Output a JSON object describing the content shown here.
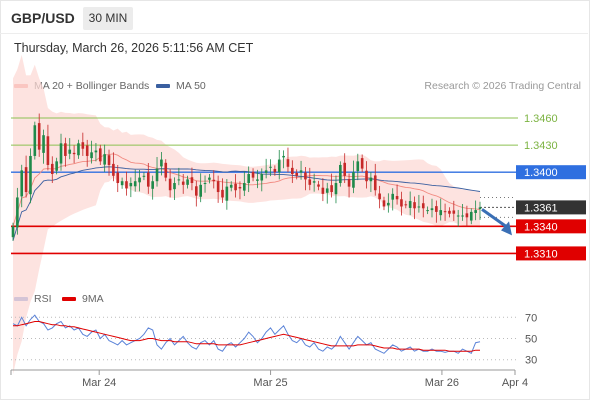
{
  "header": {
    "symbol": "GBP/USD",
    "timeframe": "30 MIN",
    "datetime": "Thursday, March 26, 2026 5:11:56 AM CET",
    "research": "Research © 2026 Trading Central"
  },
  "colors": {
    "bollinger": "#fcd9d6",
    "ma20": "#f28b82",
    "ma50": "#3a5fa0",
    "up": "#1f8a4a",
    "down": "#c62828",
    "green_level": "#8cc152",
    "pivot": "#2f6fe0",
    "support": "#e00000",
    "current_tag": "#333333",
    "rsi": "#5b83d8",
    "rsi_ma": "#e00000"
  },
  "chart_data": [
    {
      "type": "candlestick",
      "legend": [
        "MA 20 + Bollinger Bands",
        "MA 50"
      ],
      "ylim": [
        1.3275,
        1.348
      ],
      "levels": [
        {
          "value": 1.346,
          "label": "1.3460",
          "kind": "resistance-minor"
        },
        {
          "value": 1.343,
          "label": "1.3430",
          "kind": "resistance-minor"
        },
        {
          "value": 1.34,
          "label": "1.3400",
          "kind": "pivot"
        },
        {
          "value": 1.3361,
          "label": "1.3361",
          "kind": "current"
        },
        {
          "value": 1.334,
          "label": "1.3340",
          "kind": "support"
        },
        {
          "value": 1.331,
          "label": "1.3310",
          "kind": "support"
        }
      ],
      "close_series": [
        1.334,
        1.3372,
        1.3402,
        1.3378,
        1.3418,
        1.3452,
        1.3425,
        1.3441,
        1.3408,
        1.3398,
        1.3412,
        1.3432,
        1.3418,
        1.3425,
        1.342,
        1.3432,
        1.3426,
        1.3418,
        1.3422,
        1.3424,
        1.3412,
        1.342,
        1.3408,
        1.3396,
        1.3388,
        1.339,
        1.3382,
        1.3388,
        1.339,
        1.3394,
        1.3396,
        1.3384,
        1.339,
        1.3404,
        1.3414,
        1.3394,
        1.338,
        1.3388,
        1.3392,
        1.3386,
        1.3392,
        1.3388,
        1.3374,
        1.3386,
        1.3388,
        1.3394,
        1.339,
        1.3378,
        1.3372,
        1.3384,
        1.3386,
        1.338,
        1.3382,
        1.3388,
        1.3398,
        1.3394,
        1.3392,
        1.3398,
        1.3402,
        1.3406,
        1.34,
        1.3414,
        1.3418,
        1.3406,
        1.3398,
        1.3396,
        1.3402,
        1.3392,
        1.3386,
        1.339,
        1.3384,
        1.3376,
        1.3382,
        1.3378,
        1.3388,
        1.3408,
        1.3396,
        1.3384,
        1.34,
        1.3412,
        1.3404,
        1.339,
        1.3394,
        1.338,
        1.337,
        1.3362,
        1.3366,
        1.3376,
        1.337,
        1.3362,
        1.3364,
        1.3368,
        1.336,
        1.3362,
        1.336,
        1.3358,
        1.336,
        1.3356,
        1.3358,
        1.3356,
        1.3354,
        1.3354,
        1.3352,
        1.3352,
        1.335,
        1.3356,
        1.3358,
        1.3361
      ],
      "forecast_arrow": {
        "from": 1.3361,
        "to": 1.333
      }
    },
    {
      "type": "line",
      "legend": [
        "RSI",
        "9MA"
      ],
      "ylim": [
        25,
        75
      ],
      "yticks": [
        {
          "value": 70,
          "label": "70"
        },
        {
          "value": 50,
          "label": "50"
        },
        {
          "value": 30,
          "label": "30"
        }
      ],
      "rsi": [
        64,
        62,
        70,
        62,
        68,
        72,
        66,
        64,
        58,
        60,
        64,
        66,
        60,
        62,
        58,
        60,
        54,
        52,
        56,
        58,
        50,
        54,
        48,
        46,
        44,
        48,
        44,
        46,
        48,
        50,
        54,
        60,
        58,
        44,
        40,
        46,
        50,
        44,
        48,
        52,
        46,
        42,
        40,
        46,
        48,
        44,
        48,
        40,
        38,
        44,
        46,
        42,
        46,
        50,
        56,
        52,
        46,
        50,
        56,
        60,
        54,
        58,
        62,
        54,
        48,
        46,
        50,
        44,
        42,
        46,
        40,
        38,
        42,
        40,
        44,
        52,
        46,
        40,
        46,
        52,
        48,
        44,
        46,
        40,
        38,
        36,
        40,
        44,
        42,
        38,
        40,
        42,
        38,
        40,
        38,
        38,
        40,
        38,
        38,
        37,
        38,
        38,
        36,
        40,
        38,
        36,
        46,
        47
      ],
      "ma9": [
        62,
        62,
        63,
        64,
        65,
        66,
        66,
        65,
        64,
        63,
        63,
        62,
        62,
        61,
        61,
        60,
        59,
        58,
        57,
        56,
        55,
        54,
        53,
        52,
        51,
        50,
        49,
        48,
        48,
        48,
        49,
        50,
        50,
        49,
        48,
        48,
        48,
        47,
        47,
        47,
        47,
        46,
        45,
        45,
        45,
        45,
        45,
        44,
        44,
        44,
        44,
        44,
        44,
        45,
        46,
        47,
        48,
        49,
        50,
        51,
        52,
        53,
        54,
        53,
        52,
        51,
        50,
        49,
        48,
        47,
        46,
        45,
        44,
        43,
        43,
        43,
        43,
        43,
        43,
        44,
        44,
        44,
        44,
        43,
        42,
        41,
        41,
        41,
        40,
        40,
        40,
        40,
        40,
        40,
        39,
        39,
        39,
        39,
        39,
        39,
        38,
        38,
        38,
        38,
        38,
        38,
        39,
        39
      ]
    }
  ],
  "xaxis": {
    "ticks": [
      {
        "label": "Mar 24",
        "pos": 0.175
      },
      {
        "label": "Mar 25",
        "pos": 0.515
      },
      {
        "label": "Mar 26",
        "pos": 0.855
      },
      {
        "label": "Apr 4",
        "pos": 1.0
      }
    ]
  }
}
